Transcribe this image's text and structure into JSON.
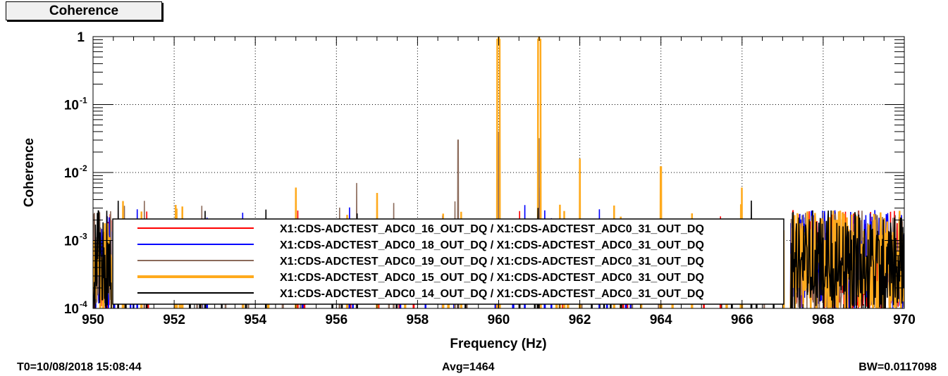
{
  "title": "Coherence",
  "footer": {
    "t0": "T0=10/08/2018 15:08:44",
    "avg": "Avg=1464",
    "bw": "BW=0.0117098"
  },
  "chart_data": {
    "type": "line",
    "title": "Coherence",
    "xlabel": "Frequency (Hz)",
    "ylabel": "Coherence",
    "xlim": [
      950,
      970
    ],
    "ylim": [
      0.0001,
      1
    ],
    "yscale": "log",
    "grid": true,
    "legend_placement": "bottom-center",
    "x_ticks": [
      "950",
      "952",
      "954",
      "956",
      "958",
      "960",
      "962",
      "964",
      "966",
      "968",
      "970"
    ],
    "y_ticks": [
      {
        "base": "10",
        "exp": "-4"
      },
      {
        "base": "10",
        "exp": "-3"
      },
      {
        "base": "10",
        "exp": "-2"
      },
      {
        "base": "10",
        "exp": "-1"
      },
      {
        "base": "1",
        "exp": ""
      }
    ],
    "series": [
      {
        "name": "X1:CDS-ADCTEST_ADC0_16_OUT_DQ / X1:CDS-ADCTEST_ADC0_31_OUT_DQ",
        "color": "#ff0000",
        "seed": 11,
        "peaks": [
          [
            961,
            0.004
          ]
        ]
      },
      {
        "name": "X1:CDS-ADCTEST_ADC0_18_OUT_DQ / X1:CDS-ADCTEST_ADC0_31_OUT_DQ",
        "color": "#0000ff",
        "seed": 23,
        "peaks": [
          [
            960,
            0.008
          ],
          [
            961,
            0.006
          ],
          [
            966,
            0.005
          ]
        ]
      },
      {
        "name": "X1:CDS-ADCTEST_ADC0_19_OUT_DQ / X1:CDS-ADCTEST_ADC0_31_OUT_DQ",
        "color": "#8b6a5a",
        "seed": 37,
        "peaks": [
          [
            959,
            0.03
          ],
          [
            960,
            0.04
          ],
          [
            961,
            0.032
          ],
          [
            956.5,
            0.007
          ],
          [
            962,
            0.008
          ]
        ]
      },
      {
        "name": "X1:CDS-ADCTEST_ADC0_15_OUT_DQ / X1:CDS-ADCTEST_ADC0_31_OUT_DQ",
        "color": "#ffaa1d",
        "seed": 51,
        "peaks": [
          [
            960,
            1.0
          ],
          [
            961,
            1.0
          ],
          [
            962,
            0.016
          ],
          [
            964,
            0.012
          ],
          [
            955,
            0.006
          ],
          [
            966,
            0.006
          ],
          [
            957,
            0.005
          ]
        ]
      },
      {
        "name": "X1:CDS-ADCTEST_ADC0_14_OUT_DQ / X1:CDS-ADCTEST_ADC0_31_OUT_DQ",
        "color": "#000000",
        "seed": 77,
        "peaks": []
      }
    ],
    "bin_width_hz": 0.0117098,
    "noise_ceiling": 0.004
  }
}
